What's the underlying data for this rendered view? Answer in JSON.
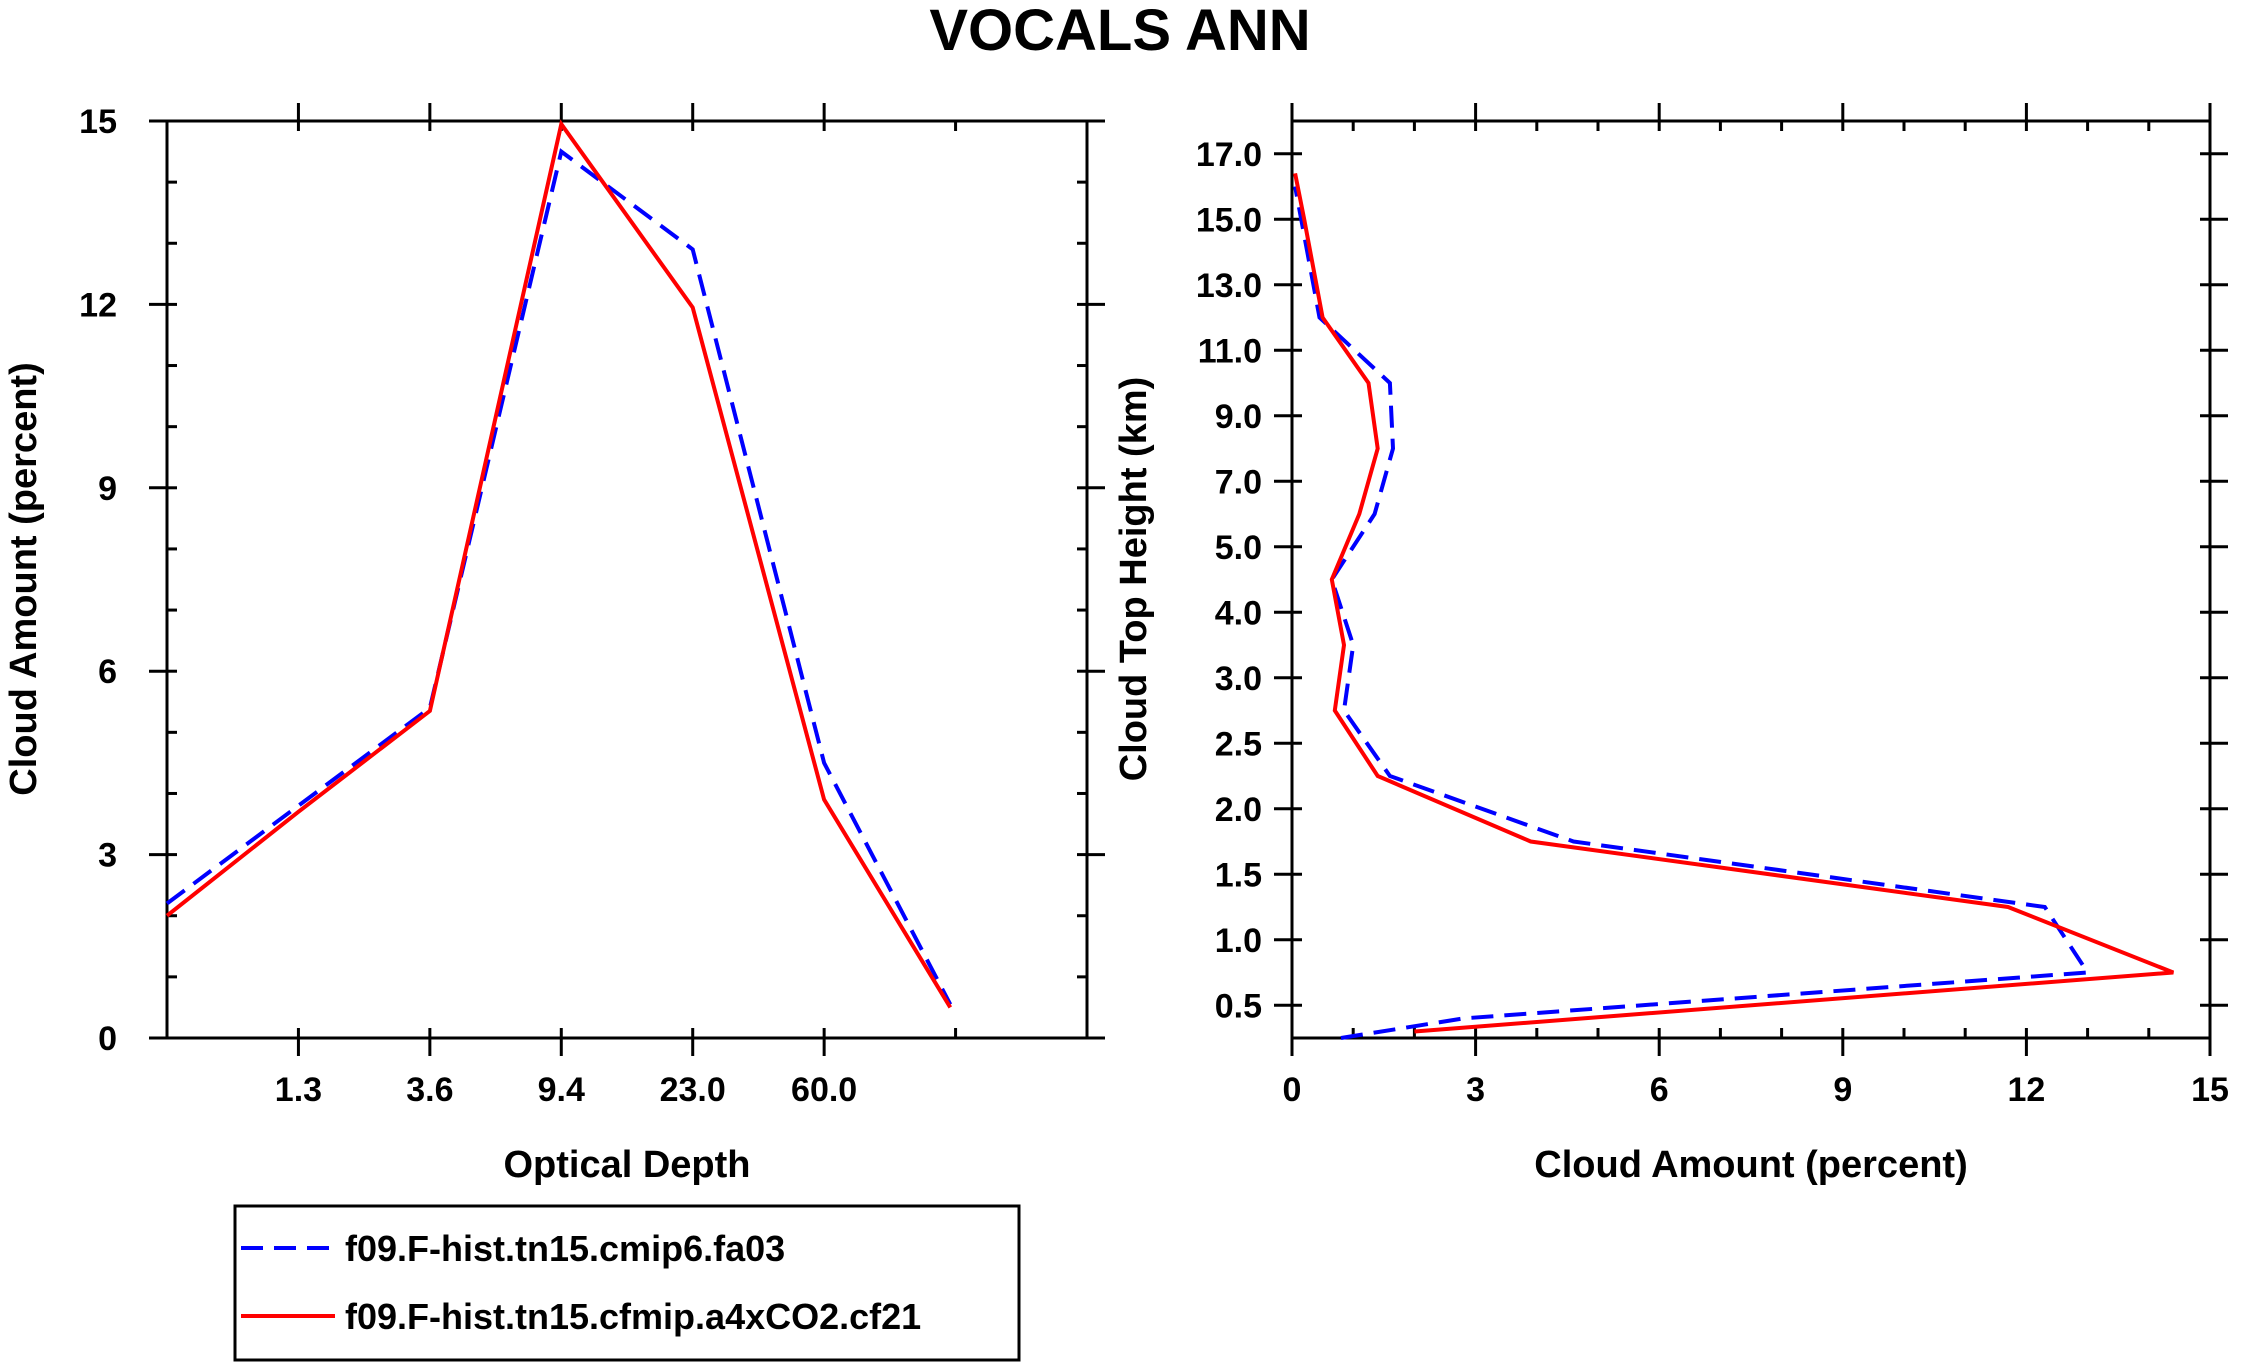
{
  "title": "VOCALS ANN",
  "colors": {
    "series_1": "#0000ff",
    "series_2": "#ff0000",
    "axis": "#000000",
    "background": "#ffffff"
  },
  "legend": {
    "entries": [
      {
        "label": "f09.F-hist.tn15.cmip6.fa03",
        "style": "dashed",
        "color": "#0000ff"
      },
      {
        "label": "f09.F-hist.tn15.cfmip.a4xCO2.cf21",
        "style": "solid",
        "color": "#ff0000"
      }
    ]
  },
  "chart_data": [
    {
      "type": "line",
      "title": "",
      "xlabel": "Optical Depth",
      "ylabel": "Cloud Amount (percent)",
      "xlim": [
        0,
        7
      ],
      "ylim": [
        0,
        15
      ],
      "x_ticks": [
        {
          "value": 1,
          "label": "1.3"
        },
        {
          "value": 2,
          "label": "3.6"
        },
        {
          "value": 3,
          "label": "9.4"
        },
        {
          "value": 4,
          "label": "23.0"
        },
        {
          "value": 5,
          "label": "60.0"
        }
      ],
      "x_minor_ticks": [
        0,
        1,
        2,
        3,
        4,
        5,
        6,
        7
      ],
      "y_ticks": [
        {
          "value": 0,
          "label": "0"
        },
        {
          "value": 3,
          "label": "3"
        },
        {
          "value": 6,
          "label": "6"
        },
        {
          "value": 9,
          "label": "9"
        },
        {
          "value": 12,
          "label": "12"
        },
        {
          "value": 15,
          "label": "15"
        }
      ],
      "y_minor_ticks": [
        0,
        1,
        2,
        3,
        4,
        5,
        6,
        7,
        8,
        9,
        10,
        11,
        12,
        13,
        14,
        15
      ],
      "x": [
        0.0,
        1.0,
        2.0,
        3.0,
        4.0,
        5.0,
        5.96
      ],
      "series": [
        {
          "name": "f09.F-hist.tn15.cmip6.fa03",
          "values": [
            2.2,
            3.8,
            5.4,
            14.5,
            12.9,
            4.5,
            0.55
          ]
        },
        {
          "name": "f09.F-hist.tn15.cfmip.a4xCO2.cf21",
          "values": [
            2.0,
            3.7,
            5.35,
            14.95,
            11.95,
            3.9,
            0.5
          ]
        }
      ]
    },
    {
      "type": "line",
      "title": "",
      "xlabel": "Cloud Amount (percent)",
      "ylabel": "Cloud Top Height (km)",
      "xlim": [
        0,
        15
      ],
      "ylim": [
        0,
        14
      ],
      "x_ticks": [
        {
          "value": 0,
          "label": "0"
        },
        {
          "value": 3,
          "label": "3"
        },
        {
          "value": 6,
          "label": "6"
        },
        {
          "value": 9,
          "label": "9"
        },
        {
          "value": 12,
          "label": "12"
        },
        {
          "value": 15,
          "label": "15"
        }
      ],
      "x_minor_ticks": [
        0,
        1,
        2,
        3,
        4,
        5,
        6,
        7,
        8,
        9,
        10,
        11,
        12,
        13,
        14,
        15
      ],
      "y_ticks": [
        {
          "value": 0.5,
          "label": "0.5"
        },
        {
          "value": 1.5,
          "label": "1.0"
        },
        {
          "value": 2.5,
          "label": "1.5"
        },
        {
          "value": 3.5,
          "label": "2.0"
        },
        {
          "value": 4.5,
          "label": "2.5"
        },
        {
          "value": 5.5,
          "label": "3.0"
        },
        {
          "value": 6.5,
          "label": "4.0"
        },
        {
          "value": 7.5,
          "label": "5.0"
        },
        {
          "value": 8.5,
          "label": "7.0"
        },
        {
          "value": 9.5,
          "label": "9.0"
        },
        {
          "value": 10.5,
          "label": "11.0"
        },
        {
          "value": 11.5,
          "label": "13.0"
        },
        {
          "value": 12.5,
          "label": "15.0"
        },
        {
          "value": 13.5,
          "label": "17.0"
        }
      ],
      "series": [
        {
          "name": "f09.F-hist.tn15.cmip6.fa03",
          "x": [
            0.8,
            2.8,
            13.0,
            12.3,
            4.6,
            1.6,
            0.85,
            1.0,
            0.65,
            1.35,
            1.65,
            1.6,
            0.45,
            0.15,
            0.05
          ],
          "y": [
            0.0,
            0.3,
            1.0,
            2.0,
            3.0,
            4.0,
            5.0,
            6.0,
            7.0,
            8.0,
            9.0,
            10.0,
            11.0,
            12.5,
            13.0
          ]
        },
        {
          "name": "f09.F-hist.tn15.cfmip.a4xCO2.cf21",
          "x": [
            2.0,
            14.4,
            11.7,
            3.9,
            1.4,
            0.7,
            0.85,
            0.65,
            1.1,
            1.4,
            1.25,
            0.5,
            0.2,
            0.05
          ],
          "y": [
            0.1,
            1.0,
            2.0,
            3.0,
            4.0,
            5.0,
            6.0,
            7.0,
            8.0,
            9.0,
            10.0,
            11.0,
            12.5,
            13.2
          ]
        }
      ]
    }
  ]
}
